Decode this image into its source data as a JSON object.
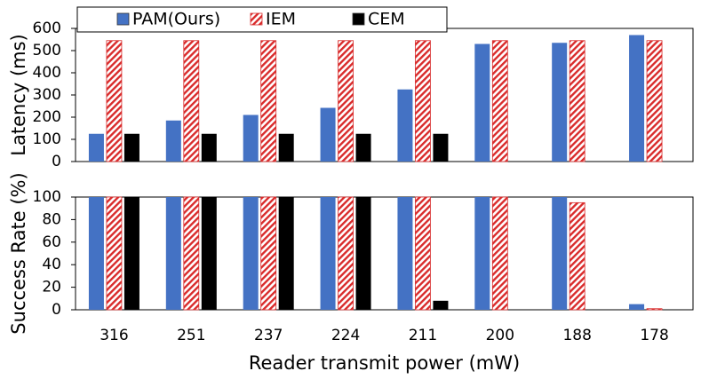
{
  "chart_data": [
    {
      "type": "bar",
      "y_label": "Latency (ms)",
      "ylim": [
        0,
        600
      ],
      "yticks": [
        0,
        100,
        200,
        300,
        400,
        500,
        600
      ],
      "legend": "top-left",
      "series": [
        {
          "name": "PAM(Ours)",
          "color": "#4472c4",
          "values": [
            125,
            185,
            210,
            242,
            325,
            530,
            535,
            570
          ]
        },
        {
          "name": "IEM",
          "color": "#d92b2b",
          "hatch": true,
          "values": [
            545,
            545,
            545,
            545,
            545,
            545,
            545,
            545
          ]
        },
        {
          "name": "CEM",
          "color": "#000000",
          "values": [
            125,
            125,
            125,
            125,
            125,
            null,
            null,
            null
          ]
        }
      ]
    },
    {
      "type": "bar",
      "y_label": "Success Rate (%)",
      "x_label": "Reader transmit power (mW)",
      "categories": [
        "316",
        "251",
        "237",
        "224",
        "211",
        "200",
        "188",
        "178"
      ],
      "ylim": [
        0,
        100
      ],
      "yticks": [
        0,
        20,
        40,
        60,
        80,
        100
      ],
      "series": [
        {
          "color": "#4472c4",
          "values": [
            100,
            100,
            100,
            100,
            100,
            100,
            100,
            5
          ]
        },
        {
          "color": "#d92b2b",
          "hatch": true,
          "values": [
            100,
            100,
            100,
            100,
            100,
            100,
            95,
            1
          ]
        },
        {
          "color": "#000000",
          "values": [
            100,
            100,
            100,
            100,
            8,
            0,
            0,
            0
          ]
        }
      ]
    }
  ]
}
